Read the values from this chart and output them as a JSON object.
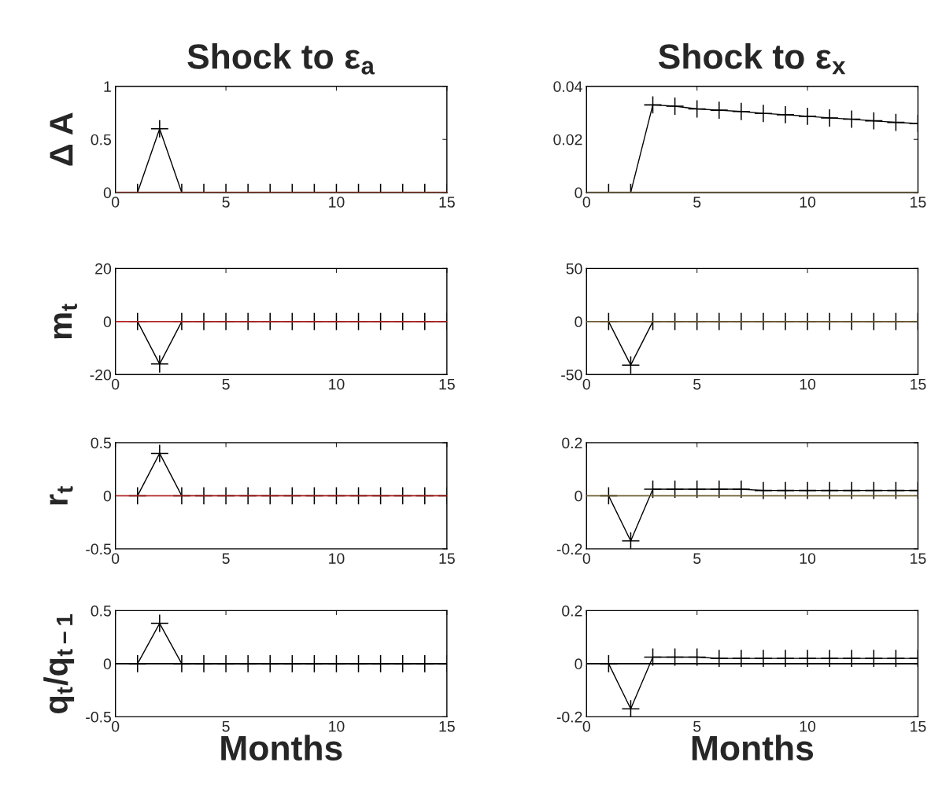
{
  "chart_data": [
    {
      "type": "line",
      "title": "Shock to ε$_{a}$",
      "ylabel": "Δ A",
      "x": [
        1,
        2,
        3,
        4,
        5,
        6,
        7,
        8,
        9,
        10,
        11,
        12,
        13,
        14,
        15
      ],
      "xlim": [
        0,
        15
      ],
      "xticks": [
        0,
        5,
        10,
        15
      ],
      "ylim": [
        0,
        1
      ],
      "yticks": [
        0,
        0.5,
        1
      ],
      "marker": "cross",
      "line_style": "solid",
      "grid": false,
      "series": [
        {
          "color": "#000000",
          "values": [
            0,
            0.6,
            0,
            0,
            0,
            0,
            0,
            0,
            0,
            0,
            0,
            0,
            0,
            0,
            0
          ]
        }
      ],
      "ref_lines": [
        {
          "axis": "y",
          "value": 0,
          "color": "#8b2a1a"
        }
      ]
    },
    {
      "type": "line",
      "title": "Shock to ε$_{x}$",
      "x": [
        1,
        2,
        3,
        4,
        5,
        6,
        7,
        8,
        9,
        10,
        11,
        12,
        13,
        14,
        15
      ],
      "xlim": [
        0,
        15
      ],
      "xticks": [
        0,
        5,
        10,
        15
      ],
      "ylim": [
        0,
        0.04
      ],
      "yticks": [
        0,
        0.02,
        0.04
      ],
      "marker": "cross",
      "line_style": "solid",
      "grid": false,
      "series": [
        {
          "color": "#000000",
          "values": [
            0,
            0,
            0.033,
            0.0325,
            0.0315,
            0.031,
            0.0305,
            0.0298,
            0.0293,
            0.0287,
            0.0281,
            0.0276,
            0.027,
            0.0264,
            0.026
          ]
        }
      ],
      "ref_lines": [
        {
          "axis": "y",
          "value": 0,
          "color": "#6b5a2e"
        }
      ]
    },
    {
      "type": "line",
      "ylabel": "m$_{t}$",
      "x": [
        1,
        2,
        3,
        4,
        5,
        6,
        7,
        8,
        9,
        10,
        11,
        12,
        13,
        14,
        15
      ],
      "xlim": [
        0,
        15
      ],
      "xticks": [
        0,
        5,
        10,
        15
      ],
      "ylim": [
        -20,
        20
      ],
      "yticks": [
        -20,
        0,
        20
      ],
      "marker": "cross",
      "line_style": "solid",
      "grid": false,
      "series": [
        {
          "color": "#000000",
          "values": [
            0,
            -16,
            0,
            0,
            0,
            0,
            0,
            0,
            0,
            0,
            0,
            0,
            0,
            0,
            0
          ]
        }
      ],
      "ref_lines": [
        {
          "axis": "y",
          "value": 0,
          "color": "#b22222"
        }
      ]
    },
    {
      "type": "line",
      "x": [
        1,
        2,
        3,
        4,
        5,
        6,
        7,
        8,
        9,
        10,
        11,
        12,
        13,
        14,
        15
      ],
      "xlim": [
        0,
        15
      ],
      "xticks": [
        0,
        5,
        10,
        15
      ],
      "ylim": [
        -50,
        50
      ],
      "yticks": [
        -50,
        0,
        50
      ],
      "marker": "cross",
      "line_style": "solid",
      "grid": false,
      "series": [
        {
          "color": "#000000",
          "values": [
            0,
            -41,
            0,
            0,
            0,
            0,
            0,
            0,
            0,
            0,
            0,
            0,
            0,
            0,
            0
          ]
        }
      ],
      "ref_lines": [
        {
          "axis": "y",
          "value": 0,
          "color": "#6b5a2e"
        }
      ]
    },
    {
      "type": "line",
      "ylabel": "r$_{t}$",
      "x": [
        1,
        2,
        3,
        4,
        5,
        6,
        7,
        8,
        9,
        10,
        11,
        12,
        13,
        14,
        15
      ],
      "xlim": [
        0,
        15
      ],
      "xticks": [
        0,
        5,
        10,
        15
      ],
      "ylim": [
        -0.5,
        0.5
      ],
      "yticks": [
        -0.5,
        0,
        0.5
      ],
      "marker": "cross",
      "line_style": "solid",
      "grid": false,
      "series": [
        {
          "color": "#000000",
          "values": [
            0,
            0.4,
            0,
            0,
            0,
            0,
            0,
            0,
            0,
            0,
            0,
            0,
            0,
            0,
            0
          ]
        }
      ],
      "ref_lines": [
        {
          "axis": "y",
          "value": 0,
          "color": "#b22222"
        }
      ]
    },
    {
      "type": "line",
      "x": [
        1,
        2,
        3,
        4,
        5,
        6,
        7,
        8,
        9,
        10,
        11,
        12,
        13,
        14,
        15
      ],
      "xlim": [
        0,
        15
      ],
      "xticks": [
        0,
        5,
        10,
        15
      ],
      "ylim": [
        -0.2,
        0.2
      ],
      "yticks": [
        -0.2,
        0,
        0.2
      ],
      "marker": "cross",
      "line_style": "solid",
      "grid": false,
      "series": [
        {
          "color": "#000000",
          "values": [
            0,
            -0.17,
            0.025,
            0.025,
            0.025,
            0.025,
            0.025,
            0.02,
            0.02,
            0.02,
            0.02,
            0.02,
            0.02,
            0.02,
            0.02
          ]
        }
      ],
      "ref_lines": [
        {
          "axis": "y",
          "value": 0,
          "color": "#6b5a2e"
        }
      ]
    },
    {
      "type": "line",
      "ylabel": "q$_{t}$/q$_{t−1}$",
      "xlabel": "Months",
      "x": [
        1,
        2,
        3,
        4,
        5,
        6,
        7,
        8,
        9,
        10,
        11,
        12,
        13,
        14,
        15
      ],
      "xlim": [
        0,
        15
      ],
      "xticks": [
        0,
        5,
        10,
        15
      ],
      "ylim": [
        -0.5,
        0.5
      ],
      "yticks": [
        -0.5,
        0,
        0.5
      ],
      "marker": "cross",
      "line_style": "solid",
      "grid": false,
      "series": [
        {
          "color": "#000000",
          "values": [
            0,
            0.38,
            0,
            0,
            0,
            0,
            0,
            0,
            0,
            0,
            0,
            0,
            0,
            0,
            0
          ]
        }
      ],
      "ref_lines": [
        {
          "axis": "y",
          "value": 0,
          "color": "#000000"
        }
      ]
    },
    {
      "type": "line",
      "xlabel": "Months",
      "x": [
        1,
        2,
        3,
        4,
        5,
        6,
        7,
        8,
        9,
        10,
        11,
        12,
        13,
        14,
        15
      ],
      "xlim": [
        0,
        15
      ],
      "xticks": [
        0,
        5,
        10,
        15
      ],
      "ylim": [
        -0.2,
        0.2
      ],
      "yticks": [
        -0.2,
        0,
        0.2
      ],
      "marker": "cross",
      "line_style": "solid",
      "grid": false,
      "series": [
        {
          "color": "#000000",
          "values": [
            0,
            -0.17,
            0.025,
            0.025,
            0.025,
            0.02,
            0.02,
            0.02,
            0.02,
            0.02,
            0.02,
            0.02,
            0.02,
            0.02,
            0.02
          ]
        }
      ],
      "ref_lines": [
        {
          "axis": "y",
          "value": 0,
          "color": "#000000"
        }
      ]
    }
  ]
}
